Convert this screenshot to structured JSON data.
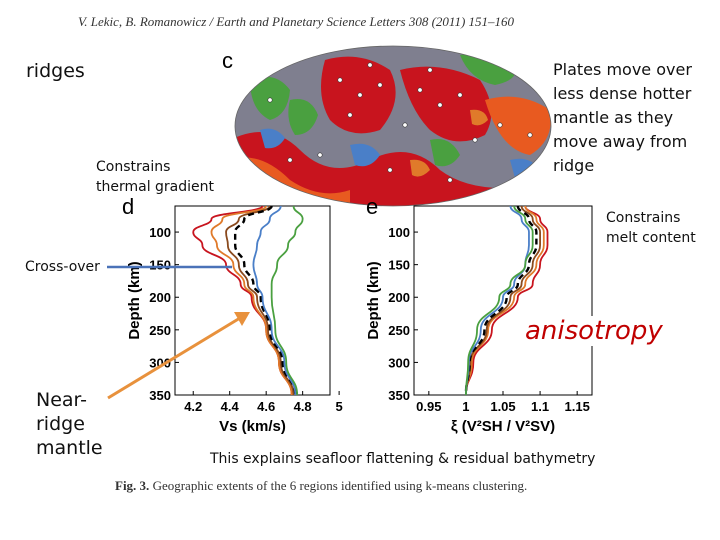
{
  "header": {
    "citation": "V. Lekic, B. Romanowicz / Earth and Planetary Science Letters 308 (2011) 151–160"
  },
  "annotations": {
    "ridges": "ridges",
    "plates_lines": [
      "Plates move over",
      "less dense hotter",
      "mantle as they",
      "move away from",
      "ridge"
    ],
    "thermal_lines": [
      "Constrains",
      "thermal gradient"
    ],
    "melt_lines": [
      "Constrains",
      "melt content"
    ],
    "crossover": "Cross-over",
    "nearridge_lines": [
      "Near-",
      "ridge",
      "mantle"
    ],
    "anisotropy": "anisotropy",
    "flattening": "This explains seafloor flattening & residual bathymetry"
  },
  "panels": {
    "c": "c",
    "d": "d",
    "e": "e"
  },
  "caption": {
    "label": "Fig. 3.",
    "text": "Geographic extents of the 6 regions identified using k-means clustering."
  },
  "colors": {
    "red": "#c8141e",
    "orange": "#e07a2a",
    "brown": "#8a4a1e",
    "blue": "#4a7fc8",
    "green": "#4aa040",
    "arrow_blue": "#4a72b8",
    "arrow_orange": "#e8913c",
    "anisotropy": "#c00000"
  },
  "chart_data": [
    {
      "type": "line",
      "panel": "d",
      "xlabel": "Vs (km/s)",
      "ylabel": "Depth (km)",
      "xlim": [
        4.1,
        4.95
      ],
      "ylim": [
        350,
        60
      ],
      "xticks": [
        "4.2",
        "4.4",
        "4.6",
        "4.8",
        "5"
      ],
      "yticks": [
        "100",
        "150",
        "200",
        "250",
        "300",
        "350"
      ],
      "depths": [
        60,
        80,
        100,
        120,
        150,
        180,
        200,
        250,
        300,
        350
      ],
      "series": [
        {
          "color": "red",
          "style": "solid",
          "values": [
            4.58,
            4.3,
            4.2,
            4.25,
            4.38,
            4.46,
            4.52,
            4.6,
            4.67,
            4.74
          ]
        },
        {
          "color": "orange",
          "style": "solid",
          "values": [
            4.6,
            4.36,
            4.3,
            4.33,
            4.42,
            4.48,
            4.53,
            4.6,
            4.67,
            4.74
          ]
        },
        {
          "color": "brown",
          "style": "solid",
          "values": [
            4.62,
            4.45,
            4.38,
            4.39,
            4.45,
            4.5,
            4.55,
            4.61,
            4.68,
            4.75
          ]
        },
        {
          "color": "black",
          "style": "dashed",
          "values": [
            4.63,
            4.48,
            4.43,
            4.43,
            4.48,
            4.53,
            4.57,
            4.62,
            4.69,
            4.76
          ]
        },
        {
          "color": "blue",
          "style": "solid",
          "values": [
            4.68,
            4.62,
            4.57,
            4.55,
            4.53,
            4.55,
            4.58,
            4.63,
            4.7,
            4.76
          ]
        },
        {
          "color": "green",
          "style": "solid",
          "values": [
            4.75,
            4.8,
            4.76,
            4.72,
            4.66,
            4.63,
            4.63,
            4.65,
            4.71,
            4.77
          ]
        }
      ]
    },
    {
      "type": "line",
      "panel": "e",
      "xlabel": "ξ (V²SH / V²SV)",
      "ylabel": "Depth (km)",
      "xlim": [
        0.93,
        1.17
      ],
      "ylim": [
        350,
        60
      ],
      "xticks": [
        "0.95",
        "1",
        "1.05",
        "1.1",
        "1.15"
      ],
      "yticks": [
        "100",
        "150",
        "200",
        "250",
        "300",
        "350"
      ],
      "depths": [
        60,
        80,
        100,
        120,
        150,
        180,
        200,
        250,
        300,
        350
      ],
      "series": [
        {
          "color": "red",
          "style": "solid",
          "values": [
            1.08,
            1.1,
            1.11,
            1.11,
            1.1,
            1.09,
            1.07,
            1.035,
            1.01,
            1.0
          ]
        },
        {
          "color": "orange",
          "style": "solid",
          "values": [
            1.08,
            1.095,
            1.105,
            1.105,
            1.095,
            1.08,
            1.065,
            1.03,
            1.008,
            1.0
          ]
        },
        {
          "color": "brown",
          "style": "solid",
          "values": [
            1.075,
            1.09,
            1.1,
            1.1,
            1.09,
            1.075,
            1.06,
            1.028,
            1.006,
            1.0
          ]
        },
        {
          "color": "black",
          "style": "dashed",
          "values": [
            1.07,
            1.085,
            1.095,
            1.095,
            1.085,
            1.07,
            1.055,
            1.025,
            1.005,
            1.0
          ]
        },
        {
          "color": "blue",
          "style": "solid",
          "values": [
            1.06,
            1.075,
            1.085,
            1.085,
            1.08,
            1.065,
            1.05,
            1.02,
            1.004,
            1.0
          ]
        },
        {
          "color": "green",
          "style": "solid",
          "values": [
            1.065,
            1.08,
            1.09,
            1.09,
            1.08,
            1.06,
            1.045,
            1.015,
            1.003,
            1.0
          ]
        }
      ]
    }
  ]
}
